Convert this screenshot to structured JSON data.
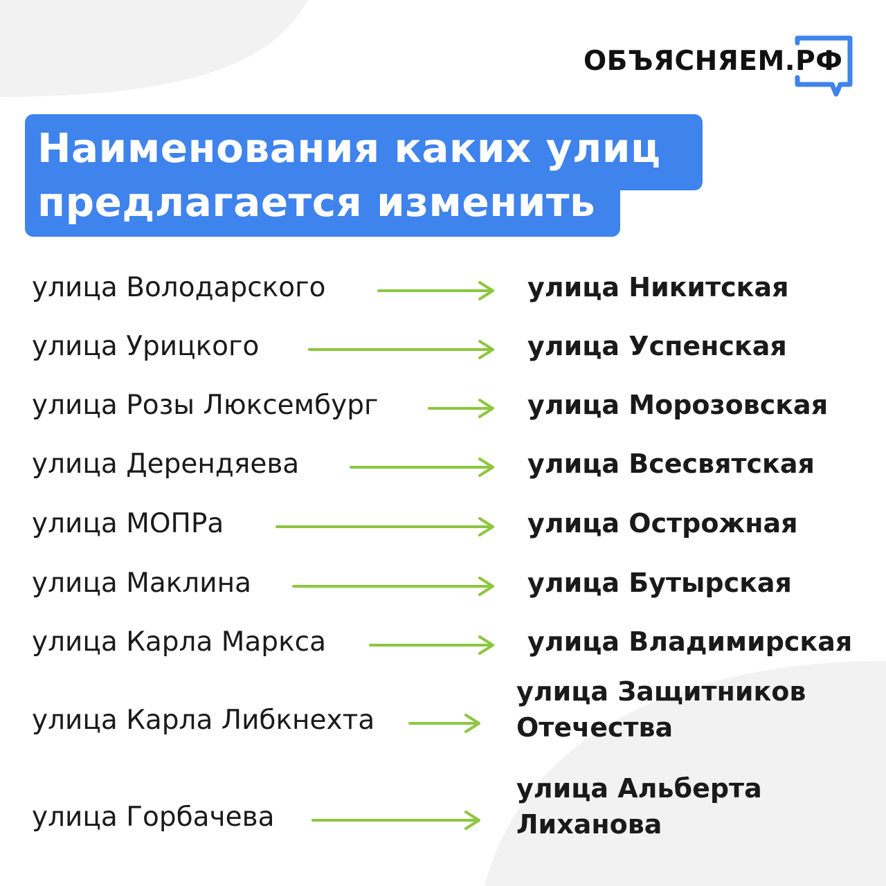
{
  "brand": {
    "logo_text": "ОБЪЯСНЯЕМ.РФ",
    "accent": "#3f83ec",
    "arrow_color": "#8dc63f"
  },
  "title": {
    "line1": "Наименования каких улиц",
    "line2": "предлагается изменить"
  },
  "rows": [
    {
      "old": "улица Володарского",
      "new": "улица Никитская"
    },
    {
      "old": "улица Урицкого",
      "new": "улица Успенская"
    },
    {
      "old": "улица Розы Люксембург",
      "new": "улица Морозовская"
    },
    {
      "old": "улица Дерендяева",
      "new": "улица Всесвятская"
    },
    {
      "old": "улица МОПРа",
      "new": "улица Острожная"
    },
    {
      "old": "улица Маклина",
      "new": "улица Бутырская"
    },
    {
      "old": "улица Карла Маркса",
      "new": "улица Владимирская"
    },
    {
      "old": "улица Карла Либкнехта",
      "new_line1": "улица Защитников",
      "new_line2": "Отечества"
    },
    {
      "old": "улица Горбачева",
      "new_line1": "улица Альберта",
      "new_line2": "Лиханова"
    }
  ]
}
